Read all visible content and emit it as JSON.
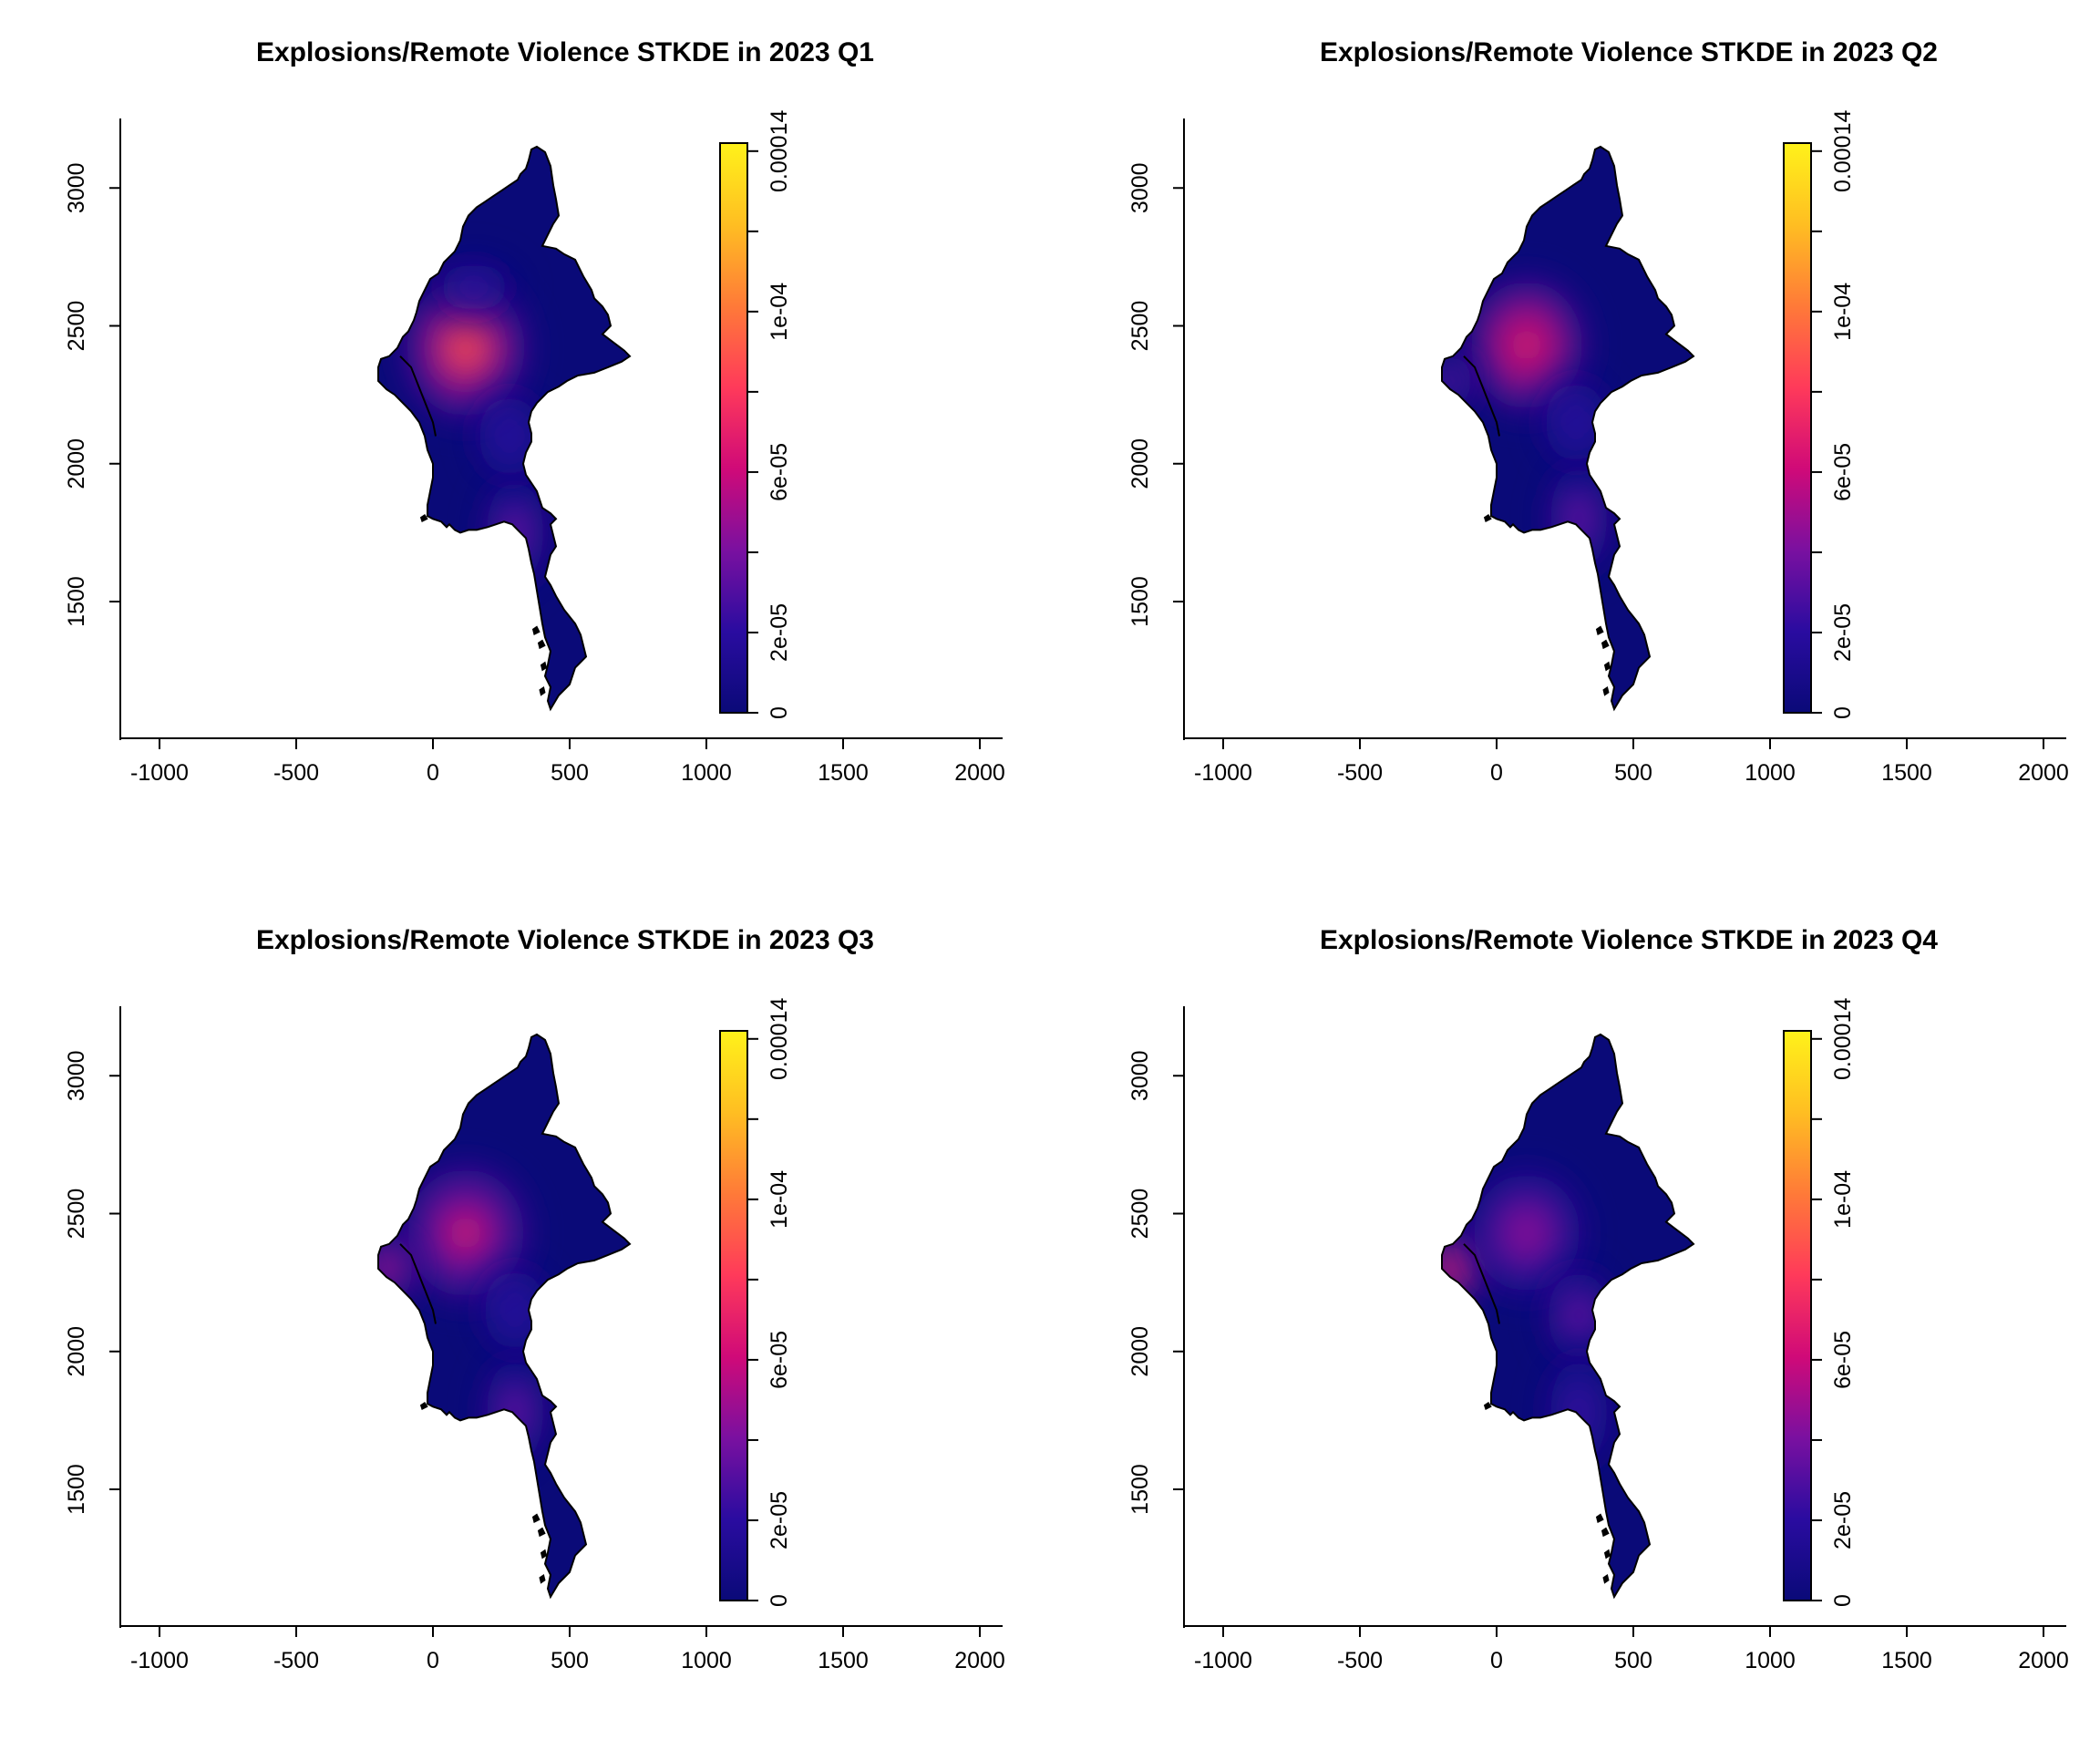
{
  "chart_data": [
    {
      "type": "heatmap",
      "title": "Explosions/Remote Violence STKDE in  2023 Q1",
      "xlabel": "",
      "ylabel": "",
      "xlim": [
        -1000,
        2000
      ],
      "ylim": [
        1100,
        3200
      ],
      "x_ticks": [
        "-1000",
        "-500",
        "0",
        "500",
        "1000",
        "1500",
        "2000"
      ],
      "y_ticks": [
        "1500",
        "2000",
        "2500",
        "3000"
      ],
      "colorbar": {
        "ticks": [
          "0",
          "2e-05",
          "6e-05",
          "1e-04",
          "0.00014"
        ],
        "range": [
          0,
          0.000142
        ],
        "palette": [
          "#0a0a78",
          "#2a0ca0",
          "#7a10a0",
          "#d00a78",
          "#ff3a5a",
          "#ff7a38",
          "#ffbe22",
          "#fff21a"
        ]
      },
      "hotspots": [
        {
          "x": 120,
          "y": 2420,
          "density": 9.5e-05,
          "sx": 120,
          "sy": 140
        },
        {
          "x": 300,
          "y": 1750,
          "density": 5e-05,
          "sx": 65,
          "sy": 120
        },
        {
          "x": 280,
          "y": 2100,
          "density": 3e-05,
          "sx": 70,
          "sy": 90
        },
        {
          "x": 150,
          "y": 2640,
          "density": 2.2e-05,
          "sx": 90,
          "sy": 60
        }
      ]
    },
    {
      "type": "heatmap",
      "title": "Explosions/Remote Violence STKDE in  2023 Q2",
      "xlabel": "",
      "ylabel": "",
      "xlim": [
        -1000,
        2000
      ],
      "ylim": [
        1100,
        3200
      ],
      "x_ticks": [
        "-1000",
        "-500",
        "0",
        "500",
        "1000",
        "1500",
        "2000"
      ],
      "y_ticks": [
        "1500",
        "2000",
        "2500",
        "3000"
      ],
      "colorbar": {
        "ticks": [
          "0",
          "2e-05",
          "6e-05",
          "1e-04",
          "0.00014"
        ],
        "range": [
          0,
          0.000142
        ],
        "palette": [
          "#0a0a78",
          "#2a0ca0",
          "#7a10a0",
          "#d00a78",
          "#ff3a5a",
          "#ff7a38",
          "#ffbe22",
          "#fff21a"
        ]
      },
      "hotspots": [
        {
          "x": 110,
          "y": 2430,
          "density": 8.5e-05,
          "sx": 115,
          "sy": 130
        },
        {
          "x": 300,
          "y": 1800,
          "density": 4e-05,
          "sx": 65,
          "sy": 120
        },
        {
          "x": -170,
          "y": 2300,
          "density": 5e-05,
          "sx": 50,
          "sy": 60
        },
        {
          "x": 290,
          "y": 2150,
          "density": 3e-05,
          "sx": 70,
          "sy": 90
        }
      ]
    },
    {
      "type": "heatmap",
      "title": "Explosions/Remote Violence STKDE in  2023 Q3",
      "xlabel": "",
      "ylabel": "",
      "xlim": [
        -1000,
        2000
      ],
      "ylim": [
        1100,
        3200
      ],
      "x_ticks": [
        "-1000",
        "-500",
        "0",
        "500",
        "1000",
        "1500",
        "2000"
      ],
      "y_ticks": [
        "1500",
        "2000",
        "2500",
        "3000"
      ],
      "colorbar": {
        "ticks": [
          "0",
          "2e-05",
          "6e-05",
          "1e-04",
          "0.00014"
        ],
        "range": [
          0,
          0.000142
        ],
        "palette": [
          "#0a0a78",
          "#2a0ca0",
          "#7a10a0",
          "#d00a78",
          "#ff3a5a",
          "#ff7a38",
          "#ffbe22",
          "#fff21a"
        ]
      },
      "hotspots": [
        {
          "x": 120,
          "y": 2430,
          "density": 8e-05,
          "sx": 120,
          "sy": 130
        },
        {
          "x": -170,
          "y": 2300,
          "density": 7e-05,
          "sx": 55,
          "sy": 70
        },
        {
          "x": 300,
          "y": 1780,
          "density": 4e-05,
          "sx": 65,
          "sy": 120
        },
        {
          "x": 300,
          "y": 2150,
          "density": 3e-05,
          "sx": 70,
          "sy": 90
        }
      ]
    },
    {
      "type": "heatmap",
      "title": "Explosions/Remote Violence STKDE in  2023 Q4",
      "xlabel": "",
      "ylabel": "",
      "xlim": [
        -1000,
        2000
      ],
      "ylim": [
        1100,
        3200
      ],
      "x_ticks": [
        "-1000",
        "-500",
        "0",
        "500",
        "1000",
        "1500",
        "2000"
      ],
      "y_ticks": [
        "1500",
        "2000",
        "2500",
        "3000"
      ],
      "colorbar": {
        "ticks": [
          "0",
          "2e-05",
          "6e-05",
          "1e-04",
          "0.00014"
        ],
        "range": [
          0,
          0.000142
        ],
        "palette": [
          "#0a0a78",
          "#2a0ca0",
          "#7a10a0",
          "#d00a78",
          "#ff3a5a",
          "#ff7a38",
          "#ffbe22",
          "#fff21a"
        ]
      },
      "hotspots": [
        {
          "x": -160,
          "y": 2300,
          "density": 9e-05,
          "sx": 55,
          "sy": 70
        },
        {
          "x": 110,
          "y": 2430,
          "density": 6e-05,
          "sx": 110,
          "sy": 120
        },
        {
          "x": 300,
          "y": 2130,
          "density": 4e-05,
          "sx": 70,
          "sy": 100
        },
        {
          "x": 300,
          "y": 1780,
          "density": 3.5e-05,
          "sx": 65,
          "sy": 120
        }
      ]
    }
  ]
}
